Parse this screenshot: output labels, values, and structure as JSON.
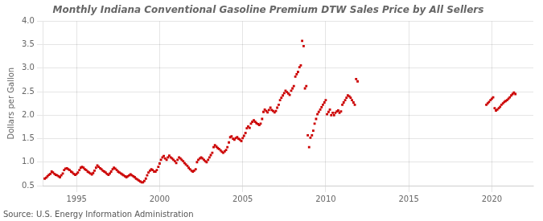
{
  "chart_data": {
    "type": "scatter",
    "title": "Monthly Indiana Conventional Gasoline Premium DTW Sales Price by All Sellers",
    "y_label": "Dollars per Gallon",
    "annotations": [
      "Source: U.S. Energy Information Administration"
    ],
    "color": "#cc0000",
    "marker": "square",
    "grid": true,
    "xlim": [
      1993.0,
      2022.5
    ],
    "xticks": [
      1995,
      2000,
      2005,
      2010,
      2015,
      2020
    ],
    "ylim": [
      0.5,
      4.0
    ],
    "yticks": [
      0.5,
      {
        "value": 1.0,
        "label": "1.0"
      },
      1.5,
      {
        "value": 2.0,
        "label": "2.0"
      },
      2.5,
      {
        "value": 3.0,
        "label": "3.0"
      },
      3.5,
      {
        "value": 4.0,
        "label": "4.0"
      }
    ],
    "x": [
      1993.08,
      1993.17,
      1993.25,
      1993.33,
      1993.42,
      1993.5,
      1993.58,
      1993.67,
      1993.75,
      1993.83,
      1993.92,
      1994.0,
      1994.08,
      1994.17,
      1994.25,
      1994.33,
      1994.42,
      1994.5,
      1994.58,
      1994.67,
      1994.75,
      1994.83,
      1994.92,
      1995.0,
      1995.08,
      1995.17,
      1995.25,
      1995.33,
      1995.42,
      1995.5,
      1995.58,
      1995.67,
      1995.75,
      1995.83,
      1995.92,
      1996.0,
      1996.08,
      1996.17,
      1996.25,
      1996.33,
      1996.42,
      1996.5,
      1996.58,
      1996.67,
      1996.75,
      1996.83,
      1996.92,
      1997.0,
      1997.08,
      1997.17,
      1997.25,
      1997.33,
      1997.42,
      1997.5,
      1997.58,
      1997.67,
      1997.75,
      1997.83,
      1997.92,
      1998.0,
      1998.08,
      1998.17,
      1998.25,
      1998.33,
      1998.42,
      1998.5,
      1998.58,
      1998.67,
      1998.75,
      1998.83,
      1998.92,
      1999.0,
      1999.08,
      1999.17,
      1999.25,
      1999.33,
      1999.42,
      1999.5,
      1999.58,
      1999.67,
      1999.75,
      1999.83,
      1999.92,
      2000.0,
      2000.08,
      2000.17,
      2000.25,
      2000.33,
      2000.42,
      2000.5,
      2000.58,
      2000.67,
      2000.75,
      2000.83,
      2000.92,
      2001.0,
      2001.08,
      2001.17,
      2001.25,
      2001.33,
      2001.42,
      2001.5,
      2001.58,
      2001.67,
      2001.75,
      2001.83,
      2001.92,
      2002.0,
      2002.08,
      2002.17,
      2002.25,
      2002.33,
      2002.42,
      2002.5,
      2002.58,
      2002.67,
      2002.75,
      2002.83,
      2002.92,
      2003.0,
      2003.08,
      2003.17,
      2003.25,
      2003.33,
      2003.42,
      2003.5,
      2003.58,
      2003.67,
      2003.75,
      2003.83,
      2003.92,
      2004.0,
      2004.08,
      2004.17,
      2004.25,
      2004.33,
      2004.42,
      2004.5,
      2004.58,
      2004.67,
      2004.75,
      2004.83,
      2004.92,
      2005.0,
      2005.08,
      2005.17,
      2005.25,
      2005.33,
      2005.42,
      2005.5,
      2005.58,
      2005.67,
      2005.75,
      2005.83,
      2005.92,
      2006.0,
      2006.08,
      2006.17,
      2006.25,
      2006.33,
      2006.42,
      2006.5,
      2006.58,
      2006.67,
      2006.75,
      2006.83,
      2006.92,
      2007.0,
      2007.08,
      2007.17,
      2007.25,
      2007.33,
      2007.42,
      2007.5,
      2007.58,
      2007.67,
      2007.75,
      2007.83,
      2007.92,
      2008.0,
      2008.08,
      2008.17,
      2008.25,
      2008.33,
      2008.42,
      2008.5,
      2008.58,
      2008.67,
      2008.75,
      2008.83,
      2008.92,
      2009.0,
      2009.08,
      2009.17,
      2009.25,
      2009.33,
      2009.42,
      2009.5,
      2009.58,
      2009.67,
      2009.75,
      2009.83,
      2009.92,
      2010.0,
      2010.08,
      2010.17,
      2010.25,
      2010.33,
      2010.42,
      2010.5,
      2010.58,
      2010.67,
      2010.75,
      2010.83,
      2010.92,
      2011.0,
      2011.08,
      2011.17,
      2011.25,
      2011.33,
      2011.42,
      2011.5,
      2011.58,
      2011.67,
      2011.75,
      2011.83,
      2011.92,
      2019.67,
      2019.75,
      2019.83,
      2019.92,
      2020.0,
      2020.08,
      2020.17,
      2020.25,
      2020.33,
      2020.42,
      2020.5,
      2020.58,
      2020.67,
      2020.75,
      2020.83,
      2020.92,
      2021.0,
      2021.08,
      2021.17,
      2021.25,
      2021.33,
      2021.42
    ],
    "values": [
      0.65,
      0.67,
      0.7,
      0.73,
      0.75,
      0.8,
      0.78,
      0.75,
      0.73,
      0.72,
      0.7,
      0.68,
      0.72,
      0.76,
      0.83,
      0.86,
      0.87,
      0.85,
      0.83,
      0.8,
      0.78,
      0.75,
      0.73,
      0.75,
      0.78,
      0.83,
      0.88,
      0.9,
      0.88,
      0.85,
      0.83,
      0.8,
      0.78,
      0.76,
      0.74,
      0.77,
      0.82,
      0.88,
      0.93,
      0.9,
      0.87,
      0.85,
      0.82,
      0.8,
      0.78,
      0.75,
      0.73,
      0.76,
      0.8,
      0.85,
      0.88,
      0.86,
      0.83,
      0.8,
      0.78,
      0.76,
      0.74,
      0.72,
      0.7,
      0.68,
      0.7,
      0.72,
      0.74,
      0.72,
      0.7,
      0.68,
      0.65,
      0.63,
      0.61,
      0.59,
      0.57,
      0.57,
      0.6,
      0.65,
      0.72,
      0.78,
      0.82,
      0.85,
      0.83,
      0.8,
      0.8,
      0.83,
      0.9,
      0.97,
      1.05,
      1.1,
      1.13,
      1.08,
      1.05,
      1.1,
      1.14,
      1.1,
      1.08,
      1.05,
      1.02,
      0.98,
      1.05,
      1.1,
      1.08,
      1.05,
      1.02,
      0.98,
      0.95,
      0.92,
      0.88,
      0.85,
      0.82,
      0.8,
      0.82,
      0.85,
      1.0,
      1.05,
      1.08,
      1.1,
      1.08,
      1.05,
      1.02,
      1.0,
      1.05,
      1.1,
      1.15,
      1.2,
      1.32,
      1.36,
      1.33,
      1.3,
      1.28,
      1.25,
      1.22,
      1.2,
      1.23,
      1.26,
      1.32,
      1.42,
      1.53,
      1.55,
      1.5,
      1.48,
      1.51,
      1.53,
      1.5,
      1.48,
      1.45,
      1.51,
      1.56,
      1.62,
      1.72,
      1.76,
      1.73,
      1.82,
      1.86,
      1.89,
      1.86,
      1.83,
      1.81,
      1.79,
      1.82,
      1.92,
      2.07,
      2.12,
      2.09,
      2.06,
      2.11,
      2.16,
      2.11,
      2.09,
      2.06,
      2.09,
      2.16,
      2.22,
      2.32,
      2.37,
      2.42,
      2.47,
      2.52,
      2.49,
      2.46,
      2.43,
      2.52,
      2.57,
      2.62,
      2.82,
      2.87,
      2.92,
      3.02,
      3.06,
      3.58,
      3.47,
      2.57,
      2.62,
      1.57,
      1.32,
      1.52,
      1.57,
      1.67,
      1.82,
      1.92,
      2.02,
      2.07,
      2.12,
      2.17,
      2.22,
      2.27,
      2.32,
      2.02,
      2.07,
      2.12,
      2.0,
      2.05,
      2.0,
      2.05,
      2.08,
      2.1,
      2.05,
      2.08,
      2.22,
      2.27,
      2.32,
      2.37,
      2.42,
      2.4,
      2.37,
      2.32,
      2.27,
      2.22,
      2.77,
      2.72,
      2.22,
      2.25,
      2.28,
      2.32,
      2.35,
      2.38,
      2.15,
      2.1,
      2.12,
      2.15,
      2.18,
      2.22,
      2.25,
      2.28,
      2.3,
      2.32,
      2.35,
      2.38,
      2.42,
      2.45,
      2.48,
      2.45
    ]
  }
}
